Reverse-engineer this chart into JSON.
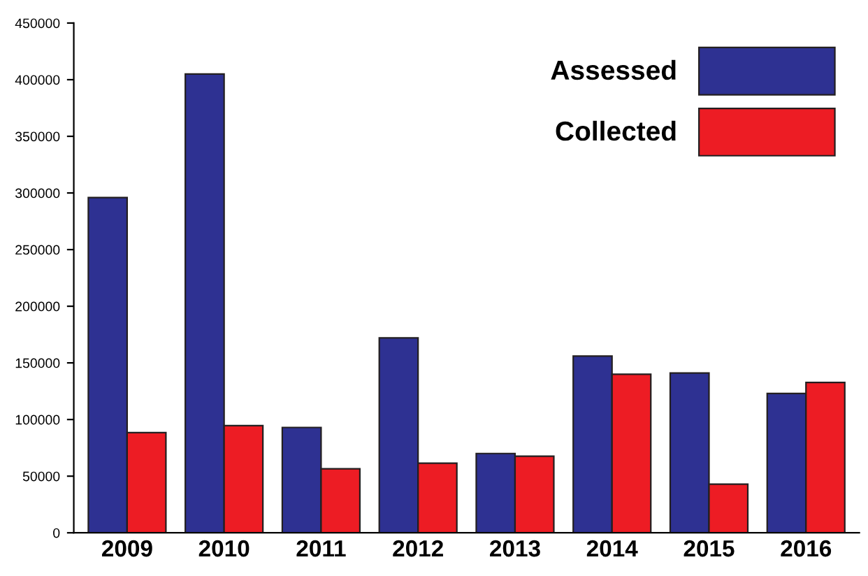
{
  "chart_data": {
    "type": "bar",
    "categories": [
      "2009",
      "2010",
      "2011",
      "2012",
      "2013",
      "2014",
      "2015",
      "2016"
    ],
    "series": [
      {
        "name": "Assessed",
        "color": "#2e3192",
        "values": [
          296000,
          405000,
          93000,
          172000,
          70000,
          156000,
          141000,
          123000
        ]
      },
      {
        "name": "Collected",
        "color": "#ed1c24",
        "values": [
          88500,
          94600,
          56500,
          61400,
          67600,
          140000,
          43000,
          132700
        ]
      }
    ],
    "ylim": [
      0,
      450000
    ],
    "yticks": [
      0,
      50000,
      100000,
      150000,
      200000,
      250000,
      300000,
      350000,
      400000,
      450000
    ],
    "grid": false,
    "legend": "top right"
  }
}
